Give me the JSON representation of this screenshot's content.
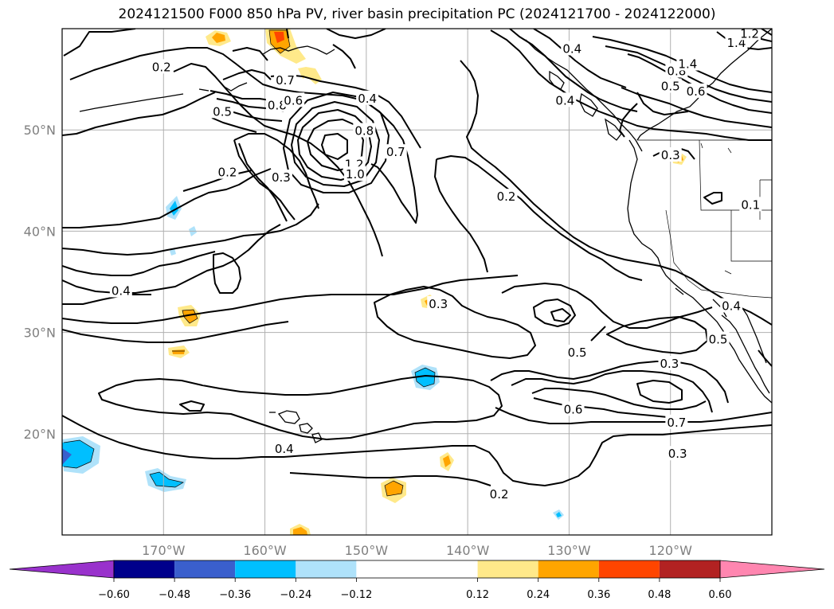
{
  "title": "2024121500 F000 850 hPa PV, river basin precipitation PC (2024121700 - 2024122000)",
  "map": {
    "lon_range": [
      -180,
      -110
    ],
    "lat_range": [
      10,
      60
    ],
    "lon_ticks": [
      {
        "value": -170,
        "label": "170°W"
      },
      {
        "value": -160,
        "label": "160°W"
      },
      {
        "value": -150,
        "label": "150°W"
      },
      {
        "value": -140,
        "label": "140°W"
      },
      {
        "value": -130,
        "label": "130°W"
      },
      {
        "value": -120,
        "label": "120°W"
      }
    ],
    "lat_ticks": [
      {
        "value": 50,
        "label": "50°N"
      },
      {
        "value": 40,
        "label": "40°N"
      },
      {
        "value": 30,
        "label": "30°N"
      },
      {
        "value": 20,
        "label": "20°N"
      }
    ],
    "grid": true,
    "contour_labels": [
      {
        "text": "0.2",
        "lon": -170.2,
        "lat": 56.2
      },
      {
        "text": "0.5",
        "lon": -164.2,
        "lat": 51.8
      },
      {
        "text": "0.8",
        "lon": -158.8,
        "lat": 52.4
      },
      {
        "text": "0.7",
        "lon": -158.0,
        "lat": 54.9
      },
      {
        "text": "0.6",
        "lon": -157.2,
        "lat": 52.9
      },
      {
        "text": "0.4",
        "lon": -149.9,
        "lat": 53.1
      },
      {
        "text": "0.8",
        "lon": -150.2,
        "lat": 49.9
      },
      {
        "text": "0.7",
        "lon": -147.1,
        "lat": 47.8
      },
      {
        "text": "1.2",
        "lon": -151.2,
        "lat": 46.6
      },
      {
        "text": "1.0",
        "lon": -151.1,
        "lat": 45.6
      },
      {
        "text": "0.2",
        "lon": -163.7,
        "lat": 45.8
      },
      {
        "text": "0.3",
        "lon": -158.4,
        "lat": 45.3
      },
      {
        "text": "0.2",
        "lon": -136.2,
        "lat": 43.4
      },
      {
        "text": "0.4",
        "lon": -129.7,
        "lat": 58.0
      },
      {
        "text": "0.4",
        "lon": -130.4,
        "lat": 52.9
      },
      {
        "text": "0.8",
        "lon": -119.4,
        "lat": 55.8
      },
      {
        "text": "1.4",
        "lon": -118.3,
        "lat": 56.5
      },
      {
        "text": "0.5",
        "lon": -120.0,
        "lat": 54.3
      },
      {
        "text": "0.6",
        "lon": -117.5,
        "lat": 53.8
      },
      {
        "text": "1.4",
        "lon": -113.5,
        "lat": 58.6
      },
      {
        "text": "1.2",
        "lon": -112.2,
        "lat": 59.5
      },
      {
        "text": "0.3",
        "lon": -120.0,
        "lat": 47.5
      },
      {
        "text": "0.1",
        "lon": -112.1,
        "lat": 42.6
      },
      {
        "text": "0.4",
        "lon": -174.2,
        "lat": 34.1
      },
      {
        "text": "0.3",
        "lon": -142.9,
        "lat": 32.8
      },
      {
        "text": "0.5",
        "lon": -129.2,
        "lat": 28.0
      },
      {
        "text": "0.3",
        "lon": -120.1,
        "lat": 26.9
      },
      {
        "text": "0.4",
        "lon": -114.0,
        "lat": 32.6
      },
      {
        "text": "0.5",
        "lon": -115.3,
        "lat": 29.3
      },
      {
        "text": "0.6",
        "lon": -129.6,
        "lat": 22.4
      },
      {
        "text": "0.7",
        "lon": -119.4,
        "lat": 21.1
      },
      {
        "text": "0.3",
        "lon": -119.3,
        "lat": 18.0
      },
      {
        "text": "0.4",
        "lon": -158.1,
        "lat": 18.5
      },
      {
        "text": "0.2",
        "lon": -136.9,
        "lat": 14.0
      }
    ]
  },
  "colorbar": {
    "bounds": [
      -0.72,
      -0.6,
      -0.48,
      -0.36,
      -0.24,
      -0.12,
      0.12,
      0.24,
      0.36,
      0.48,
      0.6,
      0.72
    ],
    "colors": [
      "#9932cc",
      "#00008b",
      "#3a5fcd",
      "#00bfff",
      "#afe2fa",
      "#ffffff",
      "#ffe98a",
      "#ffa500",
      "#ff4500",
      "#b22222",
      "#ff86b0"
    ],
    "extend_low_color": "#9932cc",
    "extend_high_color": "#ff86b0",
    "tick_labels": [
      "−0.60",
      "−0.48",
      "−0.36",
      "−0.24",
      "−0.12",
      "0.12",
      "0.24",
      "0.36",
      "0.48",
      "0.60"
    ]
  }
}
